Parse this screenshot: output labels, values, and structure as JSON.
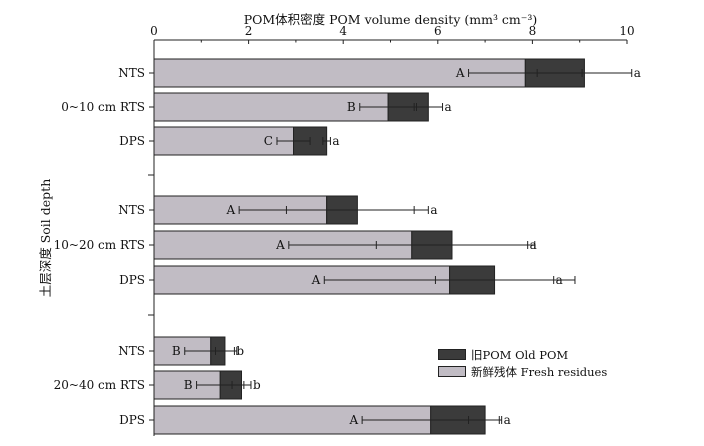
{
  "chart_data": {
    "type": "bar",
    "orientation": "horizontal",
    "stacked": true,
    "title": "POM体积密度 POM volume density (mm³ cm⁻³)",
    "ylabel": "土层深度 Soil depth",
    "xlim": [
      0,
      10
    ],
    "xticks": [
      "0",
      "2",
      "4",
      "6",
      "8",
      "10"
    ],
    "axis_position": "top",
    "groups": [
      {
        "label": "0~10 cm",
        "categories": [
          "NTS",
          "RTS",
          "DPS"
        ]
      },
      {
        "label": "10~20 cm",
        "categories": [
          "NTS",
          "RTS",
          "DPS"
        ]
      },
      {
        "label": "20~40 cm",
        "categories": [
          "NTS",
          "RTS",
          "DPS"
        ]
      }
    ],
    "category_labels": [
      "NTS",
      "0~10 cm RTS",
      "DPS",
      "NTS",
      "10~20 cm RTS",
      "DPS",
      "NTS",
      "20~40 cm RTS",
      "DPS"
    ],
    "series": [
      {
        "name": "新鲜残体 Fresh residues",
        "color": "#c1bcc4",
        "values": [
          7.85,
          4.95,
          2.95,
          3.65,
          5.45,
          6.25,
          1.2,
          1.4,
          5.85
        ],
        "error": [
          1.2,
          0.6,
          0.35,
          1.85,
          2.6,
          2.65,
          0.55,
          0.5,
          1.45
        ],
        "letters": [
          "A",
          "B",
          "C",
          "A",
          "A",
          "A",
          "B",
          "B",
          "A"
        ]
      },
      {
        "name": "旧POM Old POM",
        "color": "#3b3b3b",
        "values": [
          1.25,
          0.85,
          0.7,
          0.65,
          0.85,
          0.95,
          0.3,
          0.45,
          1.15
        ],
        "error": [
          1.0,
          0.3,
          0.08,
          1.5,
          1.6,
          1.25,
          0.2,
          0.2,
          0.35
        ],
        "letters": [
          "a",
          "a",
          "a",
          "a",
          "a",
          "a",
          "b",
          "b",
          "a"
        ]
      }
    ],
    "legend_position": "bottom-right",
    "grid": false
  },
  "legend": {
    "old_pom": "旧POM Old POM",
    "fresh": "新鲜残体 Fresh residues"
  }
}
